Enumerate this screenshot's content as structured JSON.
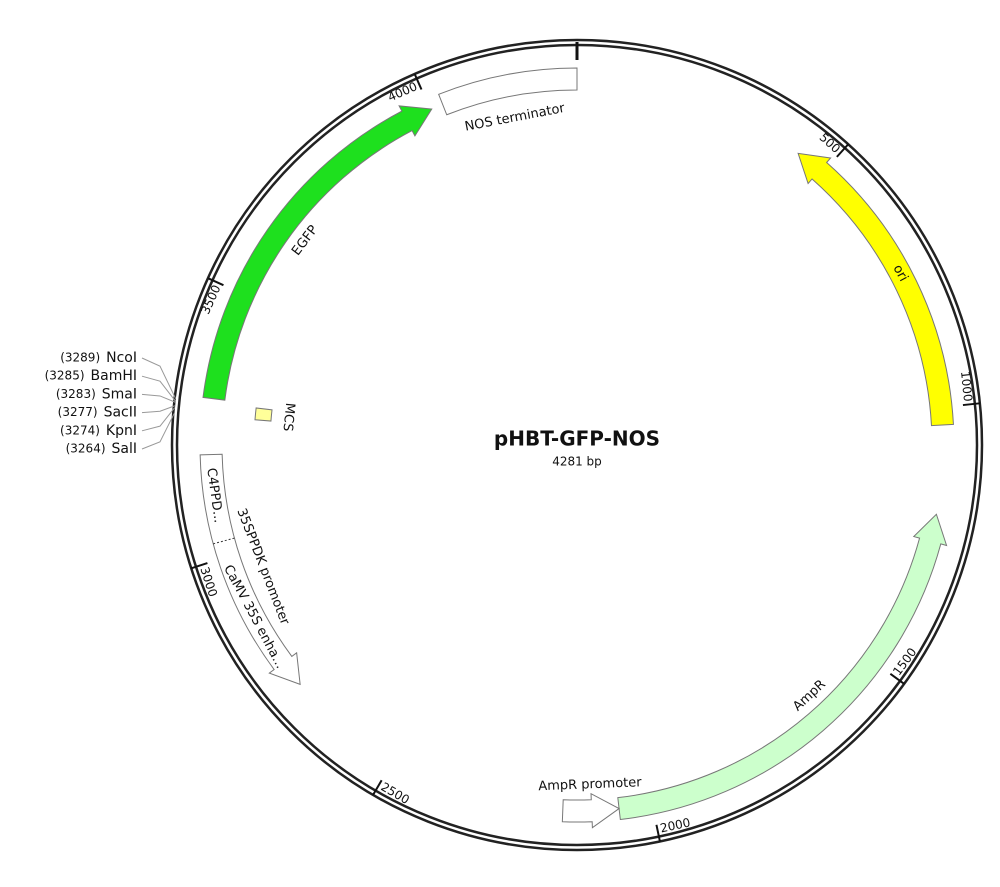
{
  "title": "pHBT-GFP-NOS",
  "length": {
    "value": 4281,
    "label": "4281 bp"
  },
  "ticks": [
    500,
    1000,
    1500,
    2000,
    2500,
    3000,
    3500,
    4000
  ],
  "features": [
    {
      "name": "NOS terminator",
      "start": 4025,
      "end": 4281,
      "strand": 0,
      "color": "#ffffff"
    },
    {
      "name": "EGFP",
      "start": 3297,
      "end": 4003,
      "strand": 1,
      "color": "#1ee01e"
    },
    {
      "name": "ori",
      "start": 442,
      "end": 1033,
      "strand": -1,
      "color": "#ffff00"
    },
    {
      "name": "AmpR",
      "start": 1200,
      "end": 2062,
      "strand": -1,
      "color": "#ccffcc"
    },
    {
      "name": "AmpR promoter",
      "start": 2062,
      "end": 2167,
      "strand": -1,
      "color": "#ffffff"
    },
    {
      "name": "35SPPDK promoter",
      "start": 2725,
      "end": 3193,
      "strand": -1,
      "color": "#ffffff",
      "parts": [
        {
          "name": "C4PPD...",
          "start": 3040,
          "end": 3193
        },
        {
          "name": "CaMV 35S enha...",
          "start": 2725,
          "end": 3030
        }
      ]
    },
    {
      "name": "MCS",
      "start": 3264,
      "end": 3289,
      "strand": 0,
      "color": "#ffff99"
    }
  ],
  "sites": [
    {
      "name": "NcoI",
      "pos": {
        "value": 3289,
        "label": "(3289)"
      }
    },
    {
      "name": "BamHI",
      "pos": {
        "value": 3285,
        "label": "(3285)"
      }
    },
    {
      "name": "SmaI",
      "pos": {
        "value": 3283,
        "label": "(3283)"
      }
    },
    {
      "name": "SacII",
      "pos": {
        "value": 3277,
        "label": "(3277)"
      }
    },
    {
      "name": "KpnI",
      "pos": {
        "value": 3274,
        "label": "(3274)"
      }
    },
    {
      "name": "SalI",
      "pos": {
        "value": 3264,
        "label": "(3264)"
      }
    }
  ]
}
